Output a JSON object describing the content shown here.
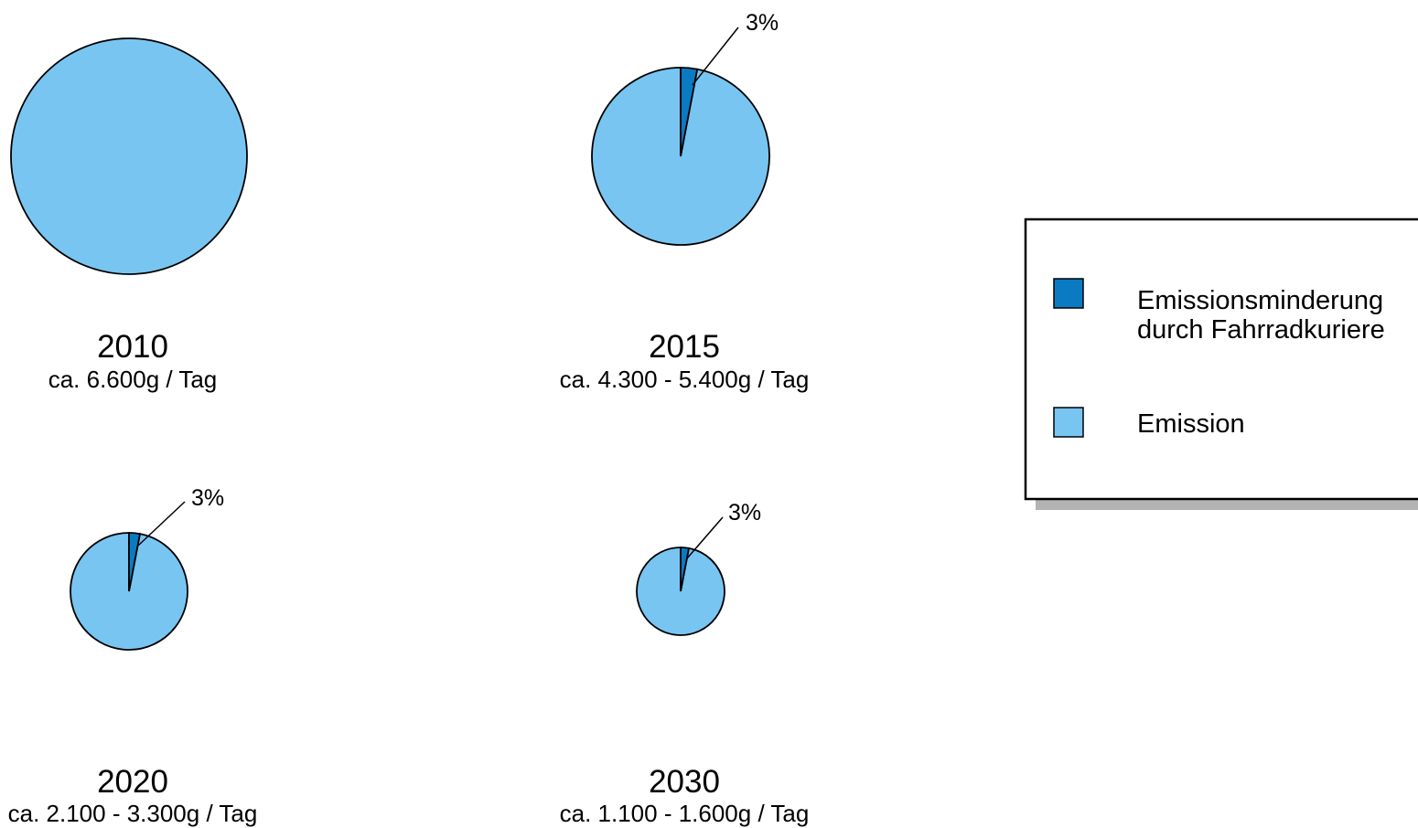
{
  "chart_data": {
    "type": "pie",
    "colors": {
      "emission": "#78C5F2",
      "reduction": "#0A7BC2",
      "outline": "#000000"
    },
    "legend": {
      "placement": "right",
      "items": [
        {
          "key": "reduction",
          "lines": [
            "Emissionsminderung",
            "durch Fahrradkuriere"
          ]
        },
        {
          "key": "emission",
          "lines": [
            "Emission"
          ]
        }
      ]
    },
    "charts": [
      {
        "year": "2010",
        "subtitle": "ca. 6.600g / Tag",
        "reduction_pct": 0,
        "pct_label": ""
      },
      {
        "year": "2015",
        "subtitle": "ca. 4.300 - 5.400g / Tag",
        "reduction_pct": 3,
        "pct_label": "3%"
      },
      {
        "year": "2020",
        "subtitle": "ca. 2.100 - 3.300g / Tag",
        "reduction_pct": 3,
        "pct_label": "3%"
      },
      {
        "year": "2030",
        "subtitle": "ca. 1.100 - 1.600g / Tag",
        "reduction_pct": 3,
        "pct_label": "3%"
      }
    ]
  }
}
